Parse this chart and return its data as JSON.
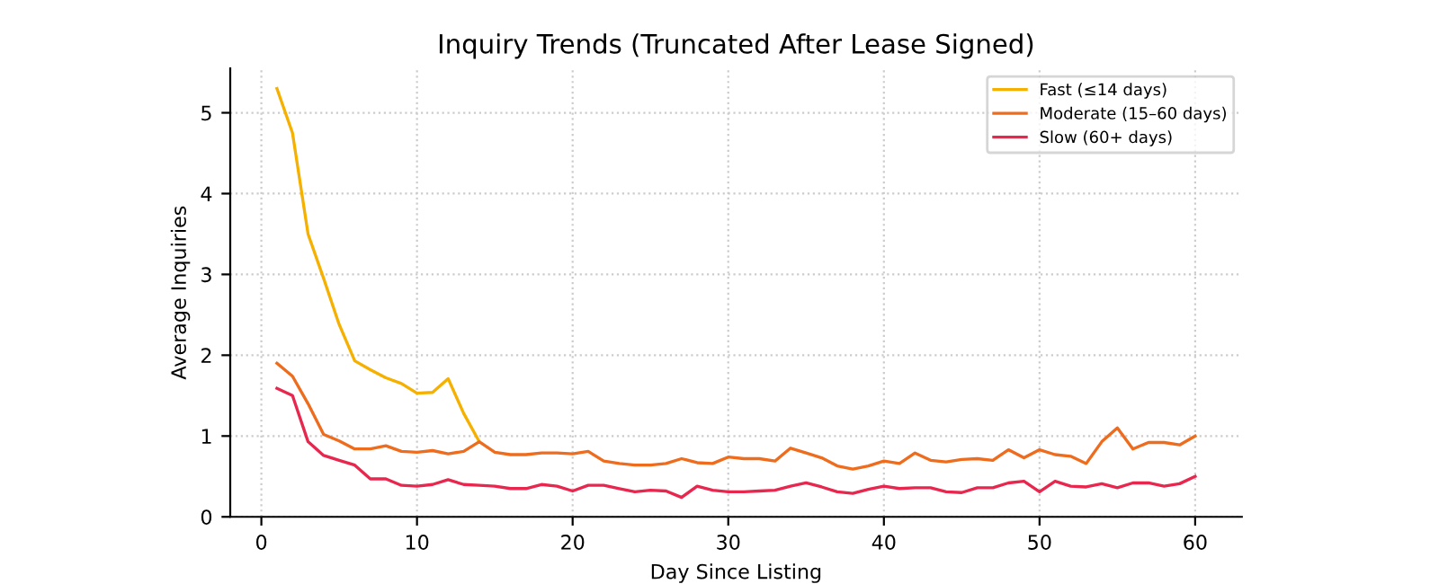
{
  "chart_data": {
    "type": "line",
    "title": "Inquiry Trends (Truncated After Lease Signed)",
    "xlabel": "Day Since Listing",
    "ylabel": "Average Inquiries",
    "xlim": [
      -2,
      63
    ],
    "xticks": [
      0,
      10,
      20,
      30,
      40,
      50,
      60
    ],
    "ylim": [
      0,
      5.55
    ],
    "yticks": [
      0,
      1,
      2,
      3,
      4,
      5
    ],
    "grid": true,
    "legend": "top right",
    "line_style": "solid",
    "series": [
      {
        "name": "Fast (≤14 days)",
        "color": "#f5b000",
        "x": [
          1,
          2,
          3,
          4,
          5,
          6,
          7,
          8,
          9,
          10,
          11,
          12,
          13,
          14
        ],
        "values": [
          5.3,
          4.75,
          3.5,
          2.95,
          2.38,
          1.93,
          1.82,
          1.72,
          1.65,
          1.53,
          1.54,
          1.71,
          1.28,
          0.93
        ]
      },
      {
        "name": "Moderate (15–60 days)",
        "color": "#ee6c1e",
        "x": [
          1,
          2,
          3,
          4,
          5,
          6,
          7,
          8,
          9,
          10,
          11,
          12,
          13,
          14,
          15,
          16,
          17,
          18,
          19,
          20,
          21,
          22,
          23,
          24,
          25,
          26,
          27,
          28,
          29,
          30,
          31,
          32,
          33,
          34,
          35,
          36,
          37,
          38,
          39,
          40,
          41,
          42,
          43,
          44,
          45,
          46,
          47,
          48,
          49,
          50,
          51,
          52,
          53,
          54,
          55,
          56,
          57,
          58,
          59,
          60
        ],
        "values": [
          1.9,
          1.74,
          1.4,
          1.02,
          0.94,
          0.84,
          0.84,
          0.88,
          0.81,
          0.8,
          0.82,
          0.78,
          0.81,
          0.93,
          0.8,
          0.77,
          0.77,
          0.79,
          0.79,
          0.78,
          0.81,
          0.69,
          0.66,
          0.64,
          0.64,
          0.66,
          0.72,
          0.67,
          0.66,
          0.74,
          0.72,
          0.72,
          0.69,
          0.85,
          0.79,
          0.73,
          0.63,
          0.59,
          0.63,
          0.69,
          0.66,
          0.79,
          0.7,
          0.68,
          0.71,
          0.72,
          0.7,
          0.83,
          0.73,
          0.83,
          0.77,
          0.75,
          0.66,
          0.93,
          1.1,
          0.84,
          0.92,
          0.92,
          0.89,
          1.0
        ]
      },
      {
        "name": "Slow (60+ days)",
        "color": "#e8274f",
        "x": [
          1,
          2,
          3,
          4,
          5,
          6,
          7,
          8,
          9,
          10,
          11,
          12,
          13,
          14,
          15,
          16,
          17,
          18,
          19,
          20,
          21,
          22,
          23,
          24,
          25,
          26,
          27,
          28,
          29,
          30,
          31,
          32,
          33,
          34,
          35,
          36,
          37,
          38,
          39,
          40,
          41,
          42,
          43,
          44,
          45,
          46,
          47,
          48,
          49,
          50,
          51,
          52,
          53,
          54,
          55,
          56,
          57,
          58,
          59,
          60
        ],
        "values": [
          1.59,
          1.5,
          0.93,
          0.76,
          0.7,
          0.64,
          0.47,
          0.47,
          0.39,
          0.38,
          0.4,
          0.46,
          0.4,
          0.39,
          0.38,
          0.35,
          0.35,
          0.4,
          0.38,
          0.32,
          0.39,
          0.39,
          0.35,
          0.31,
          0.33,
          0.32,
          0.24,
          0.38,
          0.33,
          0.31,
          0.31,
          0.32,
          0.33,
          0.38,
          0.42,
          0.37,
          0.31,
          0.29,
          0.34,
          0.38,
          0.35,
          0.36,
          0.36,
          0.31,
          0.3,
          0.36,
          0.36,
          0.42,
          0.44,
          0.31,
          0.44,
          0.38,
          0.37,
          0.41,
          0.36,
          0.42,
          0.42,
          0.38,
          0.41,
          0.5
        ]
      }
    ]
  }
}
